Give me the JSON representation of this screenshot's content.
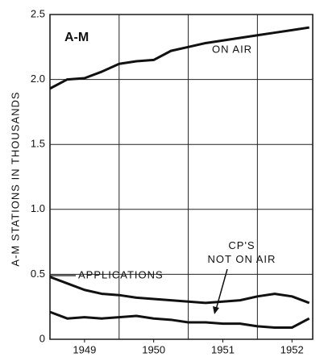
{
  "chart_data": {
    "type": "line",
    "title": "A-M",
    "y_label": "A-M STATIONS IN THOUSANDS",
    "x": [
      1949,
      1949.25,
      1949.5,
      1949.75,
      1950,
      1950.25,
      1950.5,
      1950.75,
      1951,
      1951.25,
      1951.5,
      1951.75,
      1952,
      1952.25,
      1952.5,
      1952.75
    ],
    "series": [
      {
        "name": "ON AIR",
        "color": "#111111",
        "values": [
          1.93,
          2.0,
          2.01,
          2.06,
          2.12,
          2.14,
          2.15,
          2.22,
          2.25,
          2.28,
          2.3,
          2.32,
          2.34,
          2.36,
          2.38,
          2.4
        ]
      },
      {
        "name": "APPLICATIONS",
        "color": "#111111",
        "values": [
          0.48,
          0.43,
          0.38,
          0.35,
          0.34,
          0.32,
          0.31,
          0.3,
          0.29,
          0.28,
          0.29,
          0.3,
          0.33,
          0.35,
          0.33,
          0.28
        ]
      },
      {
        "name": "CP'S\nNOT ON AIR",
        "color": "#111111",
        "values": [
          0.21,
          0.16,
          0.17,
          0.16,
          0.17,
          0.18,
          0.16,
          0.15,
          0.13,
          0.13,
          0.12,
          0.12,
          0.1,
          0.09,
          0.09,
          0.16
        ]
      }
    ],
    "xlim": [
      1949,
      1952.8
    ],
    "xticks": [
      {
        "value": 1949.5,
        "label": "1949"
      },
      {
        "value": 1950.5,
        "label": "1950"
      },
      {
        "value": 1951.5,
        "label": "1951"
      },
      {
        "value": 1952.5,
        "label": "1952"
      }
    ],
    "xgrid": [
      1950,
      1951,
      1952
    ],
    "ylim": [
      0,
      2.5
    ],
    "yticks": [
      0,
      0.5,
      {
        "value": 1,
        "label": "1.0"
      },
      1.5,
      {
        "value": 2,
        "label": "2.0"
      },
      2.5
    ],
    "grid": true
  }
}
